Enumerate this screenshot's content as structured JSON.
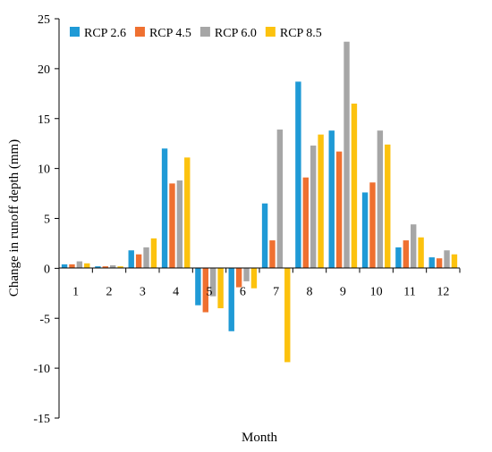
{
  "chart_data": {
    "type": "bar",
    "xlabel": "Month",
    "ylabel": "Change in runoff depth (mm)",
    "ylim": [
      -15,
      25
    ],
    "yticks": [
      -15,
      -10,
      -5,
      0,
      5,
      10,
      15,
      20,
      25
    ],
    "legend_position": "top-left",
    "grid": false,
    "categories": [
      "1",
      "2",
      "3",
      "4",
      "5",
      "6",
      "7",
      "8",
      "9",
      "10",
      "11",
      "12"
    ],
    "series": [
      {
        "name": "RCP 2.6",
        "color": "#1f9ad6",
        "values": [
          0.4,
          0.2,
          1.8,
          12.0,
          -3.7,
          -6.3,
          6.5,
          18.7,
          13.8,
          7.6,
          2.1,
          1.1
        ]
      },
      {
        "name": "RCP 4.5",
        "color": "#ef7030",
        "values": [
          0.4,
          0.2,
          1.4,
          8.5,
          -4.4,
          -1.9,
          2.8,
          9.1,
          11.7,
          8.6,
          2.8,
          1.0
        ]
      },
      {
        "name": "RCP 6.0",
        "color": "#a6a6a6",
        "values": [
          0.7,
          0.3,
          2.1,
          8.8,
          -2.8,
          -1.3,
          13.9,
          12.3,
          22.7,
          13.8,
          4.4,
          1.8
        ]
      },
      {
        "name": "RCP 8.5",
        "color": "#fcc20e",
        "values": [
          0.5,
          0.2,
          3.0,
          11.1,
          -4.0,
          -2.0,
          -9.4,
          13.4,
          16.5,
          12.4,
          3.1,
          1.4
        ]
      }
    ]
  }
}
